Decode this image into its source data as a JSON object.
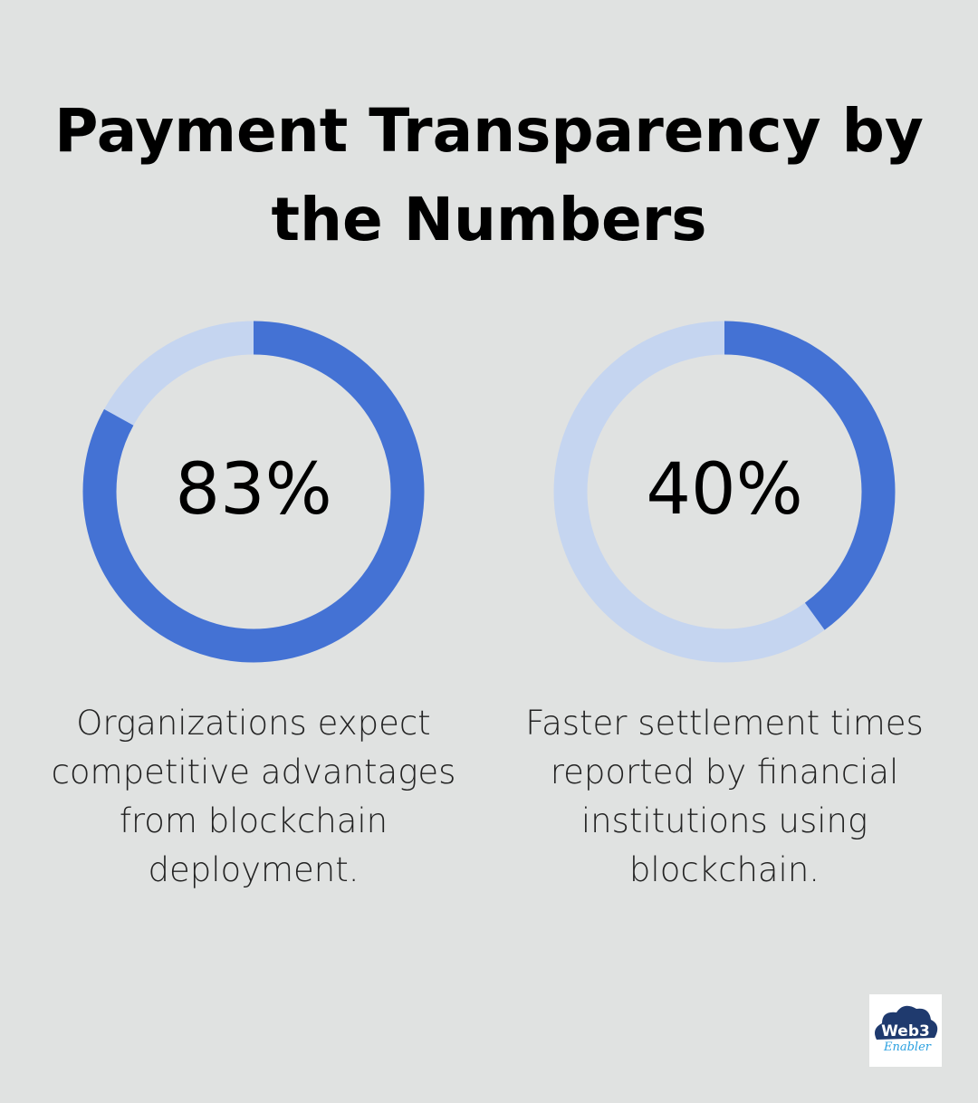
{
  "chart_data": {
    "type": "donut",
    "title": "Payment Transparency by the Numbers",
    "items": [
      {
        "value": 83,
        "label": "83%",
        "description": "Organizations expect competitive advantages from blockchain deployment."
      },
      {
        "value": 40,
        "label": "40%",
        "description": "Faster settlement times reported by financial institutions using blockchain."
      }
    ],
    "colors": {
      "filled": "#4472d4",
      "remainder": "#c5d5f0",
      "background": "#e0e2e1"
    }
  },
  "logo": {
    "text": "Web3 Enabler"
  }
}
